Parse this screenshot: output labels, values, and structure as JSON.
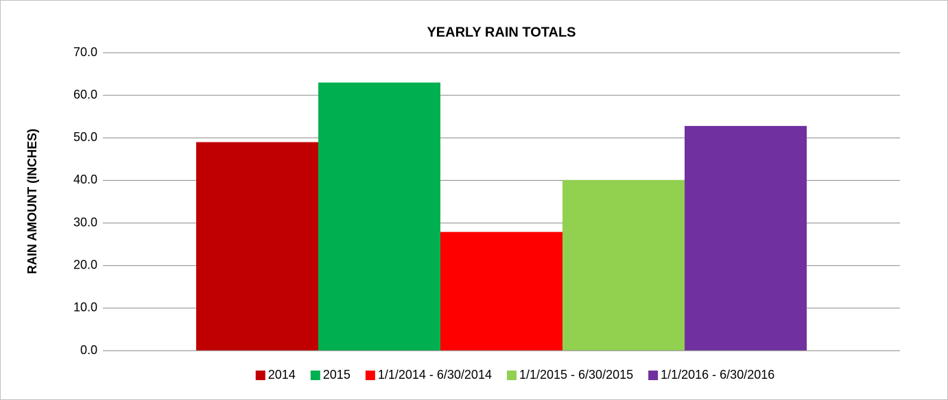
{
  "chart_data": {
    "type": "bar",
    "title": "YEARLY RAIN TOTALS",
    "y_label": "RAIN AMOUNT (INCHES)",
    "categories": [
      null
    ],
    "series": [
      {
        "name": "2014",
        "color": "#c00000",
        "values": [
          49.0
        ]
      },
      {
        "name": "2015",
        "color": "#00b050",
        "values": [
          63.0
        ]
      },
      {
        "name": "1/1/2014 - 6/30/2014",
        "color": "#ff0000",
        "values": [
          27.9
        ]
      },
      {
        "name": "1/1/2015 - 6/30/2015",
        "color": "#92d050",
        "values": [
          40.1
        ]
      },
      {
        "name": "1/1/2016 - 6/30/2016",
        "color": "#7030a0",
        "values": [
          52.8
        ]
      }
    ],
    "ylim": [
      0,
      70
    ],
    "yticks": [
      {
        "value": 0,
        "label": "0.0"
      },
      {
        "value": 10,
        "label": "10.0"
      },
      {
        "value": 20,
        "label": "20.0"
      },
      {
        "value": 30,
        "label": "30.0"
      },
      {
        "value": 40,
        "label": "40.0"
      },
      {
        "value": 50,
        "label": "50.0"
      },
      {
        "value": 60,
        "label": "60.0"
      },
      {
        "value": 70,
        "label": "70.0"
      }
    ],
    "grid": true,
    "legend": "bottom"
  }
}
